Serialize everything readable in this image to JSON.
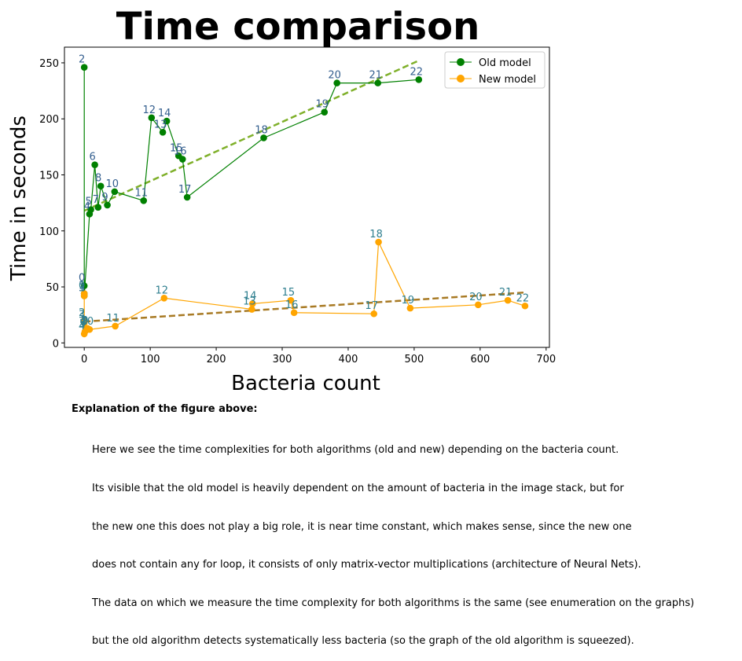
{
  "chart_data": {
    "type": "line",
    "title": "Time comparison",
    "xlabel": "Bacteria count",
    "ylabel": "Time in seconds",
    "xlim": [
      -30,
      705
    ],
    "ylim": [
      -4,
      264
    ],
    "xticks": [
      0,
      100,
      200,
      300,
      400,
      500,
      600,
      700
    ],
    "yticks": [
      0,
      50,
      100,
      150,
      200,
      250
    ],
    "grid": false,
    "legend_position": "top-right",
    "series": [
      {
        "name": "Old model",
        "color": "#008000",
        "points": [
          {
            "label": "0",
            "x": 0,
            "y": 51
          },
          {
            "label": "1",
            "x": 0,
            "y": 44
          },
          {
            "label": "2",
            "x": 0,
            "y": 246
          },
          {
            "label": "3",
            "x": 0,
            "y": 42
          },
          {
            "label": "4",
            "x": 8,
            "y": 115
          },
          {
            "label": "5",
            "x": 10,
            "y": 119
          },
          {
            "label": "6",
            "x": 16,
            "y": 159
          },
          {
            "label": "7",
            "x": 21,
            "y": 121
          },
          {
            "label": "8",
            "x": 25,
            "y": 140
          },
          {
            "label": "9",
            "x": 35,
            "y": 123
          },
          {
            "label": "10",
            "x": 46,
            "y": 135
          },
          {
            "label": "11",
            "x": 90,
            "y": 127
          },
          {
            "label": "12",
            "x": 102,
            "y": 201
          },
          {
            "label": "13",
            "x": 119,
            "y": 188
          },
          {
            "label": "14",
            "x": 125,
            "y": 198
          },
          {
            "label": "15",
            "x": 143,
            "y": 167
          },
          {
            "label": "16",
            "x": 149,
            "y": 164
          },
          {
            "label": "17",
            "x": 156,
            "y": 130
          },
          {
            "label": "18",
            "x": 272,
            "y": 183
          },
          {
            "label": "19",
            "x": 364,
            "y": 206
          },
          {
            "label": "20",
            "x": 383,
            "y": 232
          },
          {
            "label": "21",
            "x": 445,
            "y": 232
          },
          {
            "label": "22",
            "x": 507,
            "y": 235
          }
        ],
        "trendline": {
          "color": "#7fb02a",
          "from": [
            0,
            118
          ],
          "to": [
            507,
            252
          ]
        }
      },
      {
        "name": "New model",
        "color": "#ffa500",
        "points": [
          {
            "label": "0",
            "x": 0,
            "y": 44
          },
          {
            "label": "1",
            "x": 0,
            "y": 42
          },
          {
            "label": "2",
            "x": 0,
            "y": 20
          },
          {
            "label": "3",
            "x": 0,
            "y": 18
          },
          {
            "label": "4",
            "x": 0,
            "y": 8
          },
          {
            "label": "5",
            "x": 1,
            "y": 10
          },
          {
            "label": "6",
            "x": 2,
            "y": 11
          },
          {
            "label": "7",
            "x": 3,
            "y": 13
          },
          {
            "label": "8",
            "x": 4,
            "y": 12
          },
          {
            "label": "9",
            "x": 5,
            "y": 13
          },
          {
            "label": "10",
            "x": 8,
            "y": 12
          },
          {
            "label": "11",
            "x": 47,
            "y": 15
          },
          {
            "label": "12",
            "x": 121,
            "y": 40
          },
          {
            "label": "13",
            "x": 254,
            "y": 30
          },
          {
            "label": "14",
            "x": 255,
            "y": 35
          },
          {
            "label": "15",
            "x": 313,
            "y": 38
          },
          {
            "label": "16",
            "x": 318,
            "y": 27
          },
          {
            "label": "17",
            "x": 439,
            "y": 26
          },
          {
            "label": "18",
            "x": 446,
            "y": 90
          },
          {
            "label": "19",
            "x": 494,
            "y": 31
          },
          {
            "label": "20",
            "x": 597,
            "y": 34
          },
          {
            "label": "21",
            "x": 642,
            "y": 38
          },
          {
            "label": "22",
            "x": 668,
            "y": 33
          }
        ],
        "trendline": {
          "color": "#a87a24",
          "from": [
            0,
            19
          ],
          "to": [
            668,
            45
          ]
        }
      }
    ],
    "label_color": "#335e8e"
  },
  "explanation": {
    "title": "Explanation of the figure above:",
    "lines": [
      "Here we see the time complexities for both algorithms (old and new) depending on the bacteria count.",
      "Its visible that the old model is heavily dependent on the amount of bacteria in the image stack, but for",
      "the new one this does not play a big role, it is near time constant, which makes sense, since the new one",
      "does not contain any for loop, it consists of only matrix-vector multiplications (architecture of Neural Nets).",
      "The data on which we measure the time complexity for both algorithms is the same (see enumeration on the graphs)",
      "but the old algorithm detects systematically less bacteria (so the graph of the old algorithm is squeezed)."
    ]
  }
}
